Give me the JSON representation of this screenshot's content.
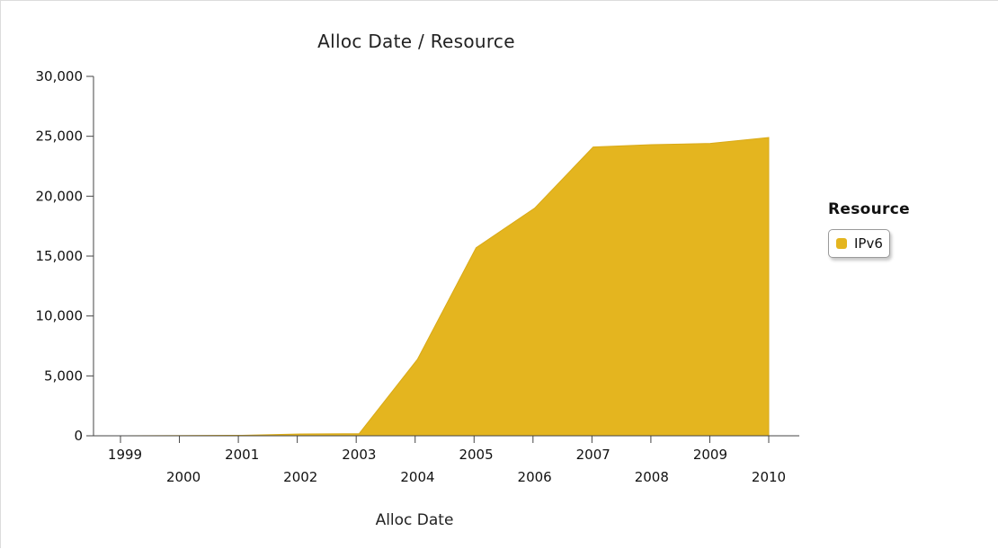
{
  "chart_data": {
    "type": "area",
    "title": "Alloc Date / Resource",
    "xlabel": "Alloc Date",
    "ylabel": "",
    "categories": [
      "1999",
      "2000",
      "2001",
      "2002",
      "2003",
      "2004",
      "2005",
      "2006",
      "2007",
      "2008",
      "2009",
      "2010"
    ],
    "series": [
      {
        "name": "IPv6",
        "color": "#e4b51f",
        "values": [
          0,
          20,
          40,
          150,
          170,
          6400,
          15700,
          19000,
          24100,
          24300,
          24400,
          24900
        ]
      }
    ],
    "ylim": [
      0,
      30000
    ],
    "yticks": [
      "0",
      "5,000",
      "10,000",
      "15,000",
      "20,000",
      "25,000",
      "30,000"
    ],
    "ytick_values": [
      0,
      5000,
      10000,
      15000,
      20000,
      25000,
      30000
    ],
    "grid": false,
    "legend": {
      "title": "Resource",
      "placement": "right"
    }
  }
}
